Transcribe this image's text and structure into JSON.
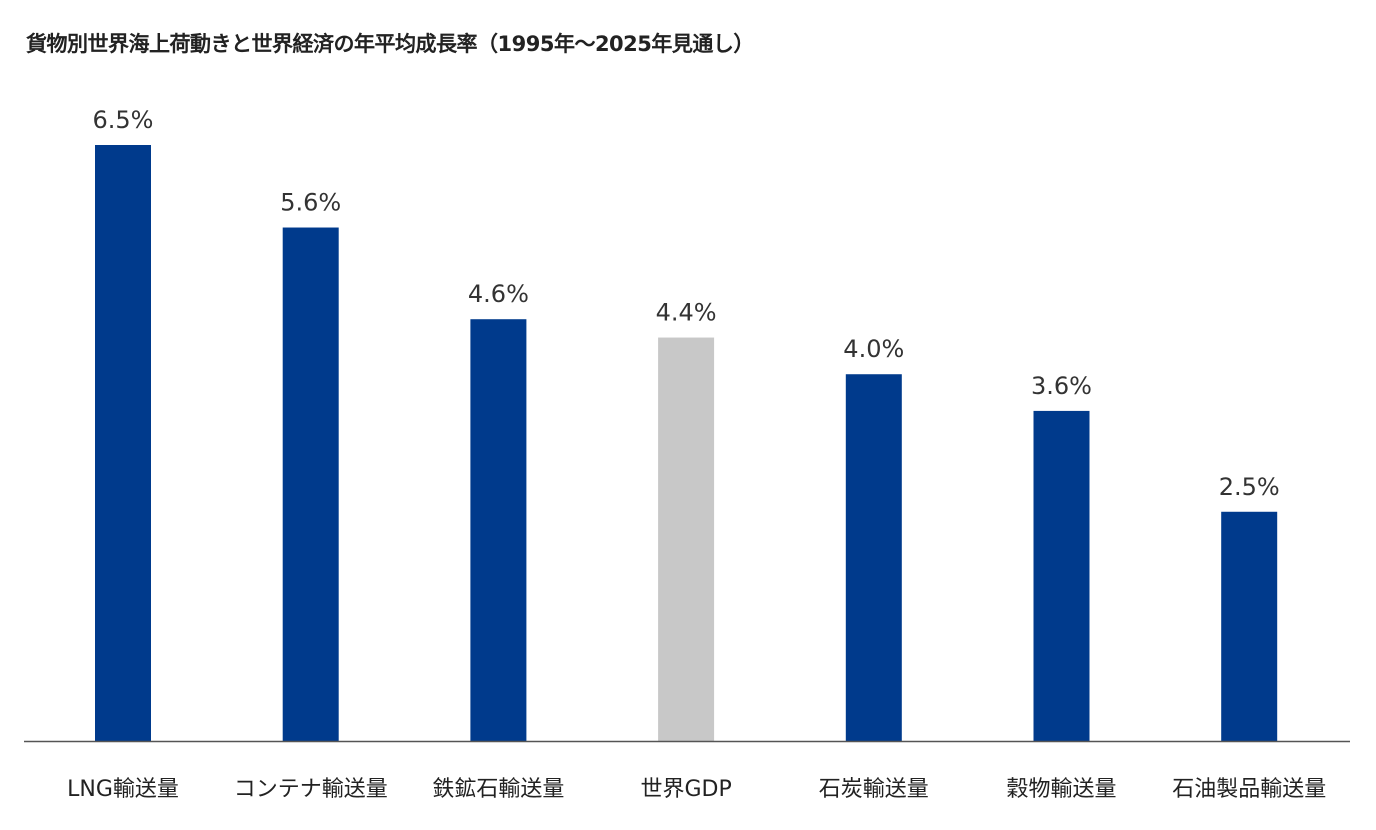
{
  "chart_data": {
    "type": "bar",
    "title": "貨物別世界海上荷動きと世界経済の年平均成長率（1995年〜2025年見通し）",
    "categories": [
      "LNG輸送量",
      "コンテナ輸送量",
      "鉄鉱石輸送量",
      "世界GDP",
      "石炭輸送量",
      "穀物輸送量",
      "石油製品輸送量"
    ],
    "values": [
      6.5,
      5.6,
      4.6,
      4.4,
      4.0,
      3.6,
      2.5
    ],
    "value_labels": [
      "6.5%",
      "5.6%",
      "4.6%",
      "4.4%",
      "4.0%",
      "3.6%",
      "2.5%"
    ],
    "highlight_category": "世界GDP",
    "colors": {
      "default": "#003a8c",
      "highlight": "#c8c8c8",
      "axis": "#555555"
    },
    "xlabel": "",
    "ylabel": "",
    "ylim": [
      0,
      6.5
    ],
    "grid": false,
    "legend": "none"
  }
}
